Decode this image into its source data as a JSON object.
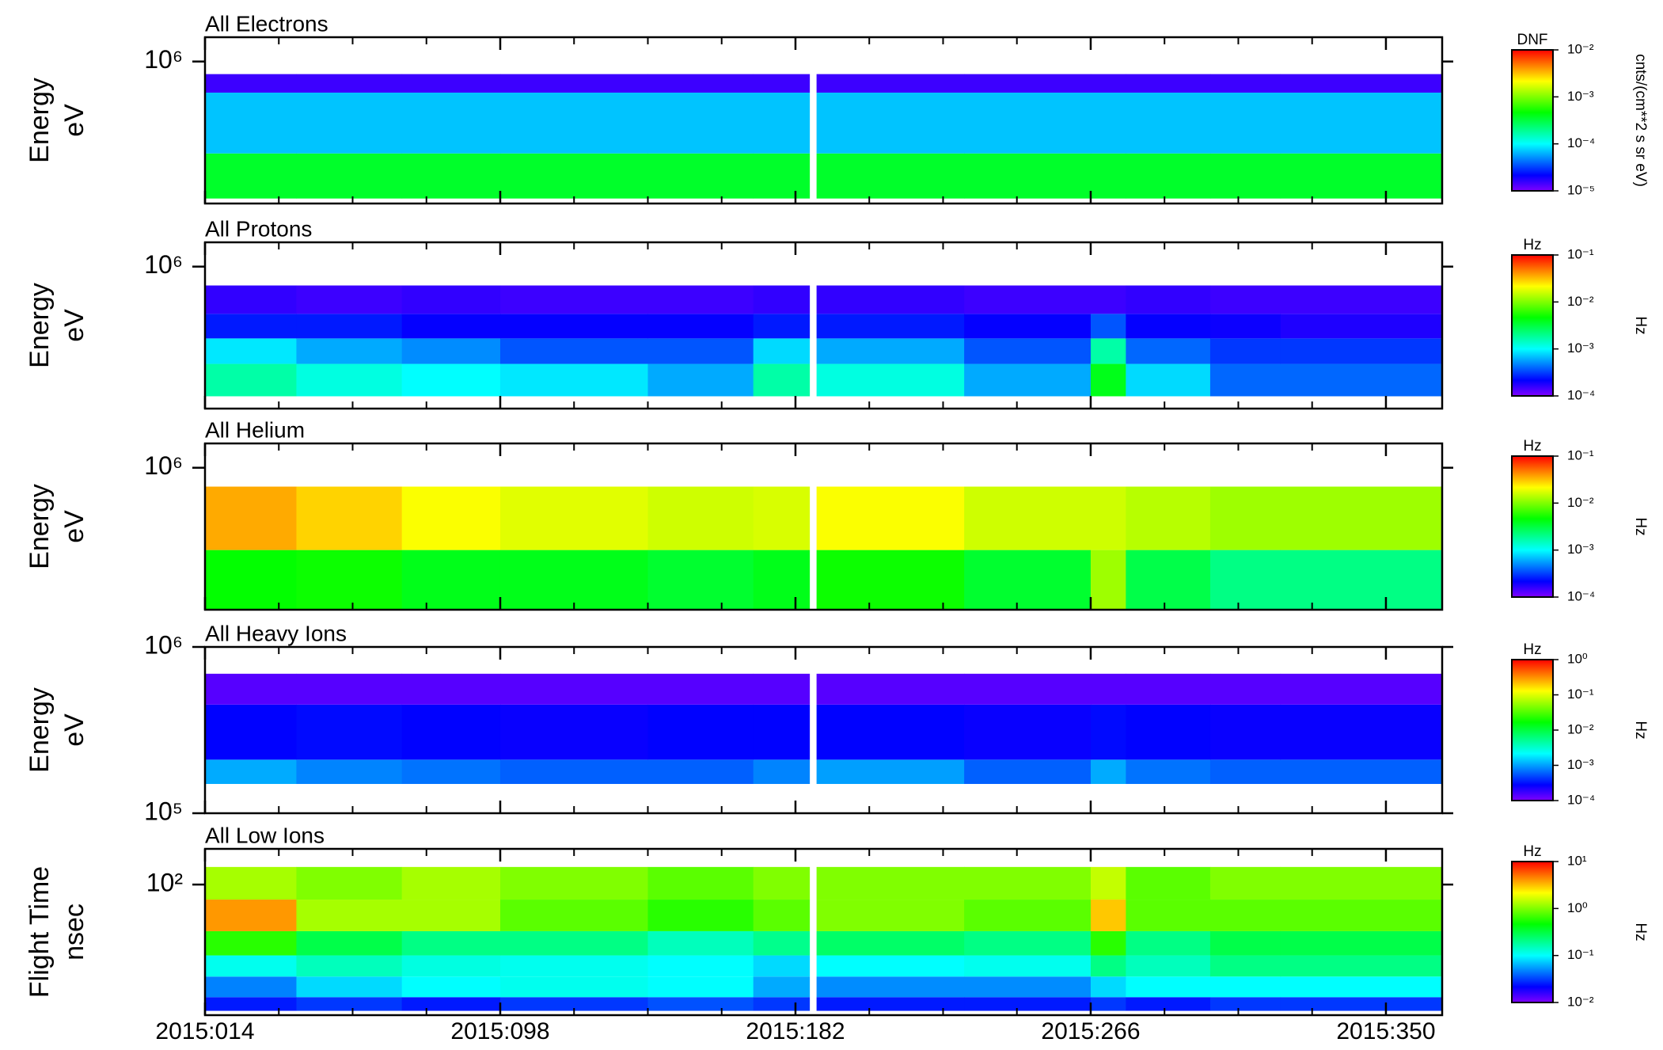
{
  "chart_data": [
    {
      "type": "heatmap",
      "title": "All Electrons",
      "ylabel": "Energy",
      "yunit": "eV",
      "yscale": "log",
      "show_xticklabels": false,
      "xlim": [
        14,
        366
      ],
      "xticks": [
        14,
        98,
        182,
        266,
        350
      ],
      "xminorticks": [
        35,
        56,
        77,
        119,
        140,
        161,
        203,
        224,
        245,
        287,
        308,
        329
      ],
      "ylim": [
        140000,
        1400000
      ],
      "yticks": [
        {
          "value": 1000000,
          "label": "10⁶"
        }
      ],
      "x_edges": [
        14,
        40,
        70,
        98,
        140,
        170,
        186,
        188,
        230,
        266,
        276,
        300,
        320,
        366
      ],
      "y_edges": [
        150000,
        280000,
        650000,
        840000
      ],
      "z": [
        [
          0.00036,
          0.00036,
          0.00036,
          0.00036,
          0.00036,
          0.00036,
          null,
          0.00036,
          0.00036,
          0.00036,
          0.00036,
          0.00036,
          0.00036
        ],
        [
          7e-05,
          7e-05,
          7e-05,
          7e-05,
          7e-05,
          7e-05,
          null,
          7e-05,
          7e-05,
          7e-05,
          7e-05,
          7e-05,
          7e-05
        ],
        [
          1.5e-05,
          1.5e-05,
          1.5e-05,
          1.5e-05,
          1.5e-05,
          1.5e-05,
          null,
          1.5e-05,
          1.5e-05,
          1.5e-05,
          1.5e-05,
          1.5e-05,
          1.5e-05
        ]
      ],
      "clim": [
        1e-05,
        0.01
      ],
      "clabel": "DNF",
      "cunit": "cnts/(cm**2 s sr eV)",
      "cticks": [
        {
          "value": 1e-05,
          "label": "10⁻⁵"
        },
        {
          "value": 0.0001,
          "label": "10⁻⁴"
        },
        {
          "value": 0.001,
          "label": "10⁻³"
        },
        {
          "value": 0.01,
          "label": "10⁻²"
        }
      ]
    },
    {
      "type": "heatmap",
      "title": "All Protons",
      "ylabel": "Energy",
      "yunit": "eV",
      "yscale": "log",
      "show_xticklabels": false,
      "xlim": [
        14,
        366
      ],
      "xticks": [
        14,
        98,
        182,
        266,
        350
      ],
      "xminorticks": [
        35,
        56,
        77,
        119,
        140,
        161,
        203,
        224,
        245,
        287,
        308,
        329
      ],
      "ylim": [
        140000,
        1400000
      ],
      "yticks": [
        {
          "value": 1000000,
          "label": "10⁶"
        }
      ],
      "x_edges": [
        14,
        40,
        70,
        98,
        140,
        170,
        186,
        188,
        230,
        266,
        276,
        300,
        320,
        366
      ],
      "y_edges": [
        166000,
        260000,
        370000,
        520000,
        770000
      ],
      "z": [
        [
          0.0017,
          0.0012,
          0.001,
          0.00087,
          0.0006,
          0.0017,
          null,
          0.0012,
          0.0006,
          0.004,
          0.0008,
          0.0004,
          0.0004
        ],
        [
          0.00087,
          0.0006,
          0.0005,
          0.00036,
          0.00036,
          0.0008,
          null,
          0.0006,
          0.00036,
          0.0017,
          0.0004,
          0.0003,
          0.0003
        ],
        [
          0.00025,
          0.00025,
          0.00021,
          0.00021,
          0.00021,
          0.00025,
          null,
          0.00025,
          0.00021,
          0.00036,
          0.00021,
          0.0002,
          0.00018
        ],
        [
          0.00016,
          0.00015,
          0.00016,
          0.00015,
          0.00015,
          0.00016,
          null,
          0.00016,
          0.00015,
          0.00015,
          0.00016,
          0.00015,
          0.00015
        ]
      ],
      "clim": [
        0.0001,
        0.1
      ],
      "clabel": "Hz",
      "cunit": "Hz",
      "cticks": [
        {
          "value": 0.0001,
          "label": "10⁻⁴"
        },
        {
          "value": 0.001,
          "label": "10⁻³"
        },
        {
          "value": 0.01,
          "label": "10⁻²"
        },
        {
          "value": 0.1,
          "label": "10⁻¹"
        }
      ]
    },
    {
      "type": "heatmap",
      "title": "All Helium",
      "ylabel": "Energy",
      "yunit": "eV",
      "yscale": "log",
      "show_xticklabels": false,
      "xlim": [
        14,
        366
      ],
      "xticks": [
        14,
        98,
        182,
        266,
        350
      ],
      "xminorticks": [
        35,
        56,
        77,
        119,
        140,
        161,
        203,
        224,
        245,
        287,
        308,
        329
      ],
      "ylim": [
        140000,
        1400000
      ],
      "yticks": [
        {
          "value": 1000000,
          "label": "10⁶"
        }
      ],
      "x_edges": [
        14,
        40,
        70,
        98,
        140,
        170,
        186,
        188,
        230,
        266,
        276,
        300,
        320,
        366
      ],
      "y_edges": [
        140000,
        320000,
        770000
      ],
      "z": [
        [
          0.0047,
          0.005,
          0.004,
          0.004,
          0.0035,
          0.004,
          null,
          0.005,
          0.0035,
          0.012,
          0.003,
          0.0021,
          0.0021
        ],
        [
          0.036,
          0.028,
          0.021,
          0.018,
          0.016,
          0.017,
          null,
          0.021,
          0.016,
          0.016,
          0.014,
          0.012,
          0.012
        ]
      ],
      "clim": [
        0.0001,
        0.1
      ],
      "clabel": "Hz",
      "cunit": "Hz",
      "cticks": [
        {
          "value": 0.0001,
          "label": "10⁻⁴"
        },
        {
          "value": 0.001,
          "label": "10⁻³"
        },
        {
          "value": 0.01,
          "label": "10⁻²"
        },
        {
          "value": 0.1,
          "label": "10⁻¹"
        }
      ]
    },
    {
      "type": "heatmap",
      "title": "All Heavy Ions",
      "ylabel": "Energy",
      "yunit": "eV",
      "yscale": "log",
      "show_xticklabels": false,
      "xlim": [
        14,
        366
      ],
      "xticks": [
        14,
        98,
        182,
        266,
        350
      ],
      "xminorticks": [
        35,
        56,
        77,
        119,
        140,
        161,
        203,
        224,
        245,
        287,
        308,
        329
      ],
      "ylim": [
        100000,
        1000000
      ],
      "yticks": [
        {
          "value": 100000,
          "label": "10⁵"
        },
        {
          "value": 1000000,
          "label": "10⁶"
        }
      ],
      "x_edges": [
        14,
        40,
        70,
        98,
        140,
        170,
        186,
        188,
        230,
        266,
        276,
        300,
        320,
        366
      ],
      "y_edges": [
        150000,
        210000,
        450000,
        690000
      ],
      "z": [
        [
          0.0011,
          0.0008,
          0.0007,
          0.0006,
          0.0006,
          0.0008,
          null,
          0.001,
          0.0006,
          0.0011,
          0.0007,
          0.0006,
          0.0006
        ],
        [
          0.00028,
          0.0003,
          0.00028,
          0.00026,
          0.00028,
          0.00028,
          null,
          0.00028,
          0.00026,
          0.0003,
          0.00028,
          0.00026,
          0.00026
        ],
        [
          0.00014,
          0.00014,
          0.00014,
          0.00014,
          0.00014,
          0.00014,
          null,
          0.00014,
          0.00014,
          0.00014,
          0.00014,
          0.00014,
          0.00014
        ]
      ],
      "clim": [
        0.0001,
        1
      ],
      "clabel": "Hz",
      "cunit": "Hz",
      "cticks": [
        {
          "value": 0.0001,
          "label": "10⁻⁴"
        },
        {
          "value": 0.001,
          "label": "10⁻³"
        },
        {
          "value": 0.01,
          "label": "10⁻²"
        },
        {
          "value": 0.1,
          "label": "10⁻¹"
        },
        {
          "value": 1,
          "label": "10⁰"
        }
      ]
    },
    {
      "type": "heatmap",
      "title": "All Low Ions",
      "ylabel": "Flight Time",
      "yunit": "nsec",
      "yscale": "log",
      "show_xticklabels": true,
      "xlim": [
        14,
        366
      ],
      "xticks": [
        {
          "value": 14,
          "label": "2015:014"
        },
        {
          "value": 98,
          "label": "2015:098"
        },
        {
          "value": 182,
          "label": "2015:182"
        },
        {
          "value": 266,
          "label": "2015:266"
        },
        {
          "value": 350,
          "label": "2015:350"
        }
      ],
      "xminorticks": [
        35,
        56,
        77,
        119,
        140,
        161,
        203,
        224,
        245,
        287,
        308,
        329
      ],
      "ylim": [
        16,
        165
      ],
      "yticks": [
        {
          "value": 100,
          "label": "10²"
        }
      ],
      "x_edges": [
        14,
        40,
        70,
        98,
        140,
        170,
        186,
        188,
        230,
        266,
        276,
        300,
        320,
        366
      ],
      "y_edges": [
        17,
        20.6,
        27.5,
        37,
        52,
        81,
        128
      ],
      "z": [
        [
          0.025,
          0.03,
          0.025,
          0.03,
          0.035,
          0.03,
          null,
          0.025,
          0.025,
          0.03,
          0.025,
          0.03,
          0.03
        ],
        [
          0.047,
          0.08,
          0.1,
          0.11,
          0.1,
          0.06,
          null,
          0.05,
          0.05,
          0.08,
          0.1,
          0.1,
          0.1
        ],
        [
          0.11,
          0.15,
          0.12,
          0.11,
          0.1,
          0.08,
          null,
          0.1,
          0.11,
          0.21,
          0.15,
          0.21,
          0.21
        ],
        [
          0.59,
          0.3,
          0.21,
          0.21,
          0.15,
          0.2,
          null,
          0.25,
          0.21,
          0.59,
          0.21,
          0.3,
          0.3
        ],
        [
          4,
          1.26,
          1.26,
          0.8,
          0.59,
          0.8,
          null,
          1,
          0.8,
          3,
          0.8,
          0.8,
          0.8
        ],
        [
          1.26,
          1,
          1.26,
          1,
          0.8,
          1,
          null,
          1,
          1,
          1.5,
          0.8,
          1,
          1
        ]
      ],
      "clim": [
        0.01,
        10
      ],
      "clabel": "Hz",
      "cunit": "Hz",
      "cticks": [
        {
          "value": 0.01,
          "label": "10⁻²"
        },
        {
          "value": 0.1,
          "label": "10⁻¹"
        },
        {
          "value": 1,
          "label": "10⁰"
        },
        {
          "value": 10,
          "label": "10¹"
        }
      ]
    }
  ]
}
